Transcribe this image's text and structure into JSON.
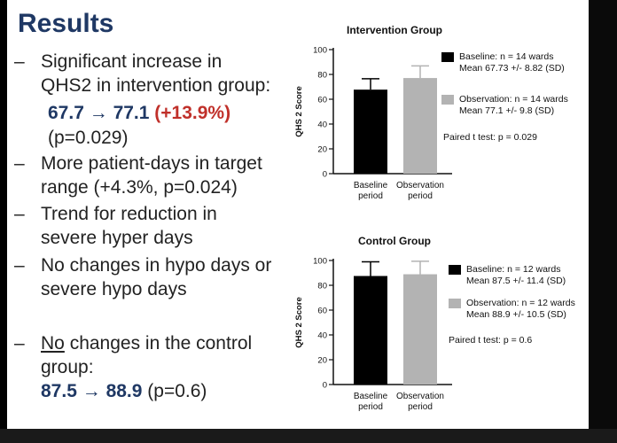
{
  "slide": {
    "title": "Results",
    "bullets": {
      "b1_line1": "Significant increase in",
      "b1_line2": "QHS2 in intervention group:",
      "b1_from": "67.7",
      "b1_arrow": "→",
      "b1_to": "77.1",
      "b1_change": "(+13.9%)",
      "b1_p": "(p=0.029)",
      "b2_line1": "More patient-days in target",
      "b2_line2": "range (+4.3%, p=0.024)",
      "b3_line1": "Trend for reduction in",
      "b3_line2": "severe hyper days",
      "b4_line1": "No changes in hypo days or",
      "b4_line2": "severe hypo days",
      "b5_no": "No",
      "b5_rest": " changes in the control",
      "b5_line2": "group:",
      "b5_from": "87.5",
      "b5_arrow": "→",
      "b5_to": "88.9",
      "b5_p": "(p=0.6)"
    },
    "dash": "–"
  },
  "colors": {
    "title": "#1f3864",
    "highlight_red": "#c0302a",
    "baseline_bar": "#000000",
    "observation_bar": "#b3b3b3"
  },
  "chart_data": [
    {
      "type": "bar",
      "title": "Intervention Group",
      "ylabel": "QHS 2 Score",
      "categories": [
        "Baseline period",
        "Observation period"
      ],
      "category_lines": [
        [
          "Baseline",
          "period"
        ],
        [
          "Observation",
          "period"
        ]
      ],
      "values": [
        67.73,
        77.1
      ],
      "errors": [
        8.82,
        9.8
      ],
      "ylim": [
        0,
        100
      ],
      "yticks": [
        0,
        20,
        40,
        60,
        80,
        100
      ],
      "legend": [
        {
          "line1": "Baseline: n = 14 wards",
          "line2": "Mean 67.73 +/- 8.82 (SD)"
        },
        {
          "line1": "Observation: n = 14 wards",
          "line2": "Mean 77.1 +/- 9.8 (SD)"
        }
      ],
      "test": "Paired t test: p = 0.029",
      "legend_position": "right"
    },
    {
      "type": "bar",
      "title": "Control Group",
      "ylabel": "QHS 2 Score",
      "categories": [
        "Baseline period",
        "Observation period"
      ],
      "category_lines": [
        [
          "Baseline",
          "period"
        ],
        [
          "Observation",
          "period"
        ]
      ],
      "values": [
        87.5,
        88.9
      ],
      "errors": [
        11.4,
        10.5
      ],
      "ylim": [
        0,
        100
      ],
      "yticks": [
        0,
        20,
        40,
        60,
        80,
        100
      ],
      "legend": [
        {
          "line1": "Baseline: n = 12 wards",
          "line2": "Mean 87.5 +/- 11.4 (SD)"
        },
        {
          "line1": "Observation: n = 12 wards",
          "line2": "Mean 88.9 +/- 10.5 (SD)"
        }
      ],
      "test": "Paired t test: p = 0.6",
      "legend_position": "right"
    }
  ]
}
